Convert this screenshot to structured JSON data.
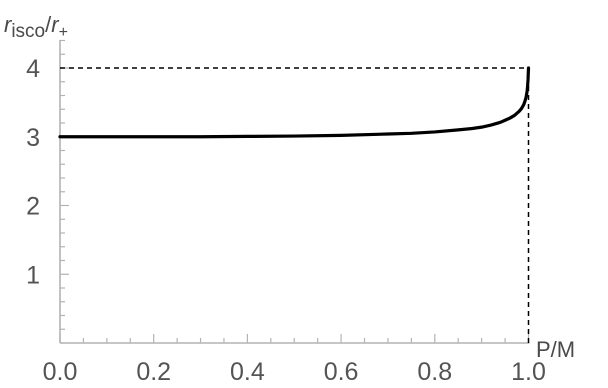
{
  "chart_data": {
    "type": "line",
    "title": "",
    "xlabel": "P/M",
    "ylabel": {
      "r_main": "r",
      "isco_sub": "isco",
      "slash": "/",
      "r_plus_main": "r",
      "plus_sub": "+"
    },
    "xlim": [
      0.0,
      1.0
    ],
    "ylim": [
      0.0,
      4.0
    ],
    "x_ticks": [
      0.0,
      0.2,
      0.4,
      0.6,
      0.8,
      1.0
    ],
    "x_tick_labels": [
      "0.0",
      "0.2",
      "0.4",
      "0.6",
      "0.8",
      "1.0"
    ],
    "y_ticks": [
      1,
      2,
      3,
      4
    ],
    "y_tick_labels": [
      "1",
      "2",
      "3",
      "4"
    ],
    "grid": false,
    "series": [
      {
        "x": [
          0.0,
          0.1,
          0.2,
          0.3,
          0.4,
          0.5,
          0.6,
          0.7,
          0.75,
          0.8,
          0.85,
          0.88,
          0.9,
          0.92,
          0.94,
          0.95,
          0.96,
          0.97,
          0.98,
          0.985,
          0.99,
          0.993,
          0.995,
          0.997,
          0.998,
          0.999,
          1.0
        ],
        "values": [
          3.0,
          3.0,
          3.0,
          3.0,
          3.005,
          3.01,
          3.02,
          3.04,
          3.05,
          3.07,
          3.1,
          3.12,
          3.14,
          3.17,
          3.21,
          3.24,
          3.27,
          3.31,
          3.37,
          3.41,
          3.47,
          3.53,
          3.58,
          3.66,
          3.73,
          3.83,
          4.0
        ]
      }
    ],
    "reference_lines": [
      {
        "style": "dashed",
        "from": [
          0.0,
          4.0
        ],
        "to": [
          1.0,
          4.0
        ]
      },
      {
        "style": "dashed",
        "from": [
          1.0,
          0.0
        ],
        "to": [
          1.0,
          4.0
        ]
      }
    ],
    "colors": {
      "axis": "#b3b3b3",
      "curve": "#000000",
      "text": "#545454"
    }
  }
}
